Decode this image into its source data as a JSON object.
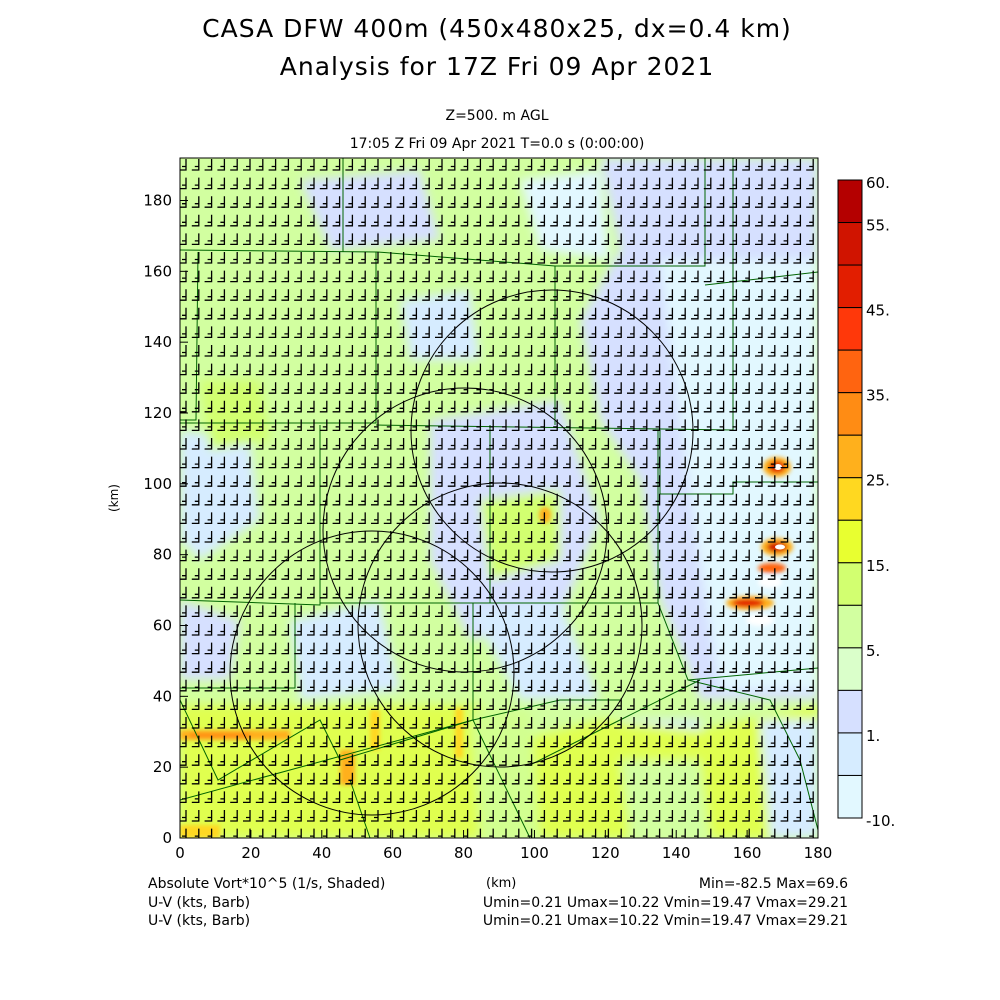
{
  "header": {
    "title": "CASA DFW 400m (450x480x25, dx=0.4 km)",
    "subtitle": "Analysis for 17Z Fri 09 Apr 2021",
    "level": "Z=500. m AGL",
    "time": "17:05 Z Fri 09 Apr 2021    T=0.0 s (0:00:00)"
  },
  "footer": {
    "field_label": "Absolute Vort*10^5 (1/s, Shaded)",
    "xunit": "(km)",
    "field_range": "Min=-82.5 Max=69.6",
    "barb1_label": "U-V (kts, Barb)",
    "barb1_range": "Umin=0.21 Umax=10.22 Vmin=19.47 Vmax=29.21",
    "barb2_label": "U-V (kts, Barb)",
    "barb2_range": "Umin=0.21 Umax=10.22 Vmin=19.47 Vmax=29.21"
  },
  "chart_data": {
    "type": "heatmap",
    "title": "CASA DFW 400m (450x480x25, dx=0.4 km)",
    "xlabel": "(km)",
    "ylabel": "(km)",
    "xlim": [
      0,
      180
    ],
    "ylim": [
      0,
      192
    ],
    "xticks": [
      "0",
      "20",
      "40",
      "60",
      "80",
      "100",
      "120",
      "140",
      "160",
      "180"
    ],
    "yticks": [
      "0",
      "20",
      "40",
      "60",
      "80",
      "100",
      "120",
      "140",
      "160",
      "180"
    ],
    "field": "Absolute Vort*10^5 (1/s)",
    "min": -82.5,
    "max": 69.6,
    "colorbar": {
      "labels": [
        "60.",
        "55.",
        "45.",
        "35.",
        "25.",
        "15.",
        "5.",
        "1.",
        "-10."
      ],
      "levels_top_to_bottom": [
        60,
        55,
        50,
        45,
        40,
        35,
        30,
        25,
        20,
        15,
        10,
        5,
        3,
        1,
        -5,
        -10
      ],
      "colors": [
        "#b40000",
        "#d01400",
        "#e21e00",
        "#ff380a",
        "#ff6410",
        "#ff8c14",
        "#ffb01c",
        "#ffd820",
        "#e8ff30",
        "#d2ff70",
        "#d2ffa0",
        "#daffca",
        "#d6e0ff",
        "#d6ecff",
        "#e2f8ff"
      ]
    },
    "overlay": "wind barbs U-V (kts)"
  }
}
